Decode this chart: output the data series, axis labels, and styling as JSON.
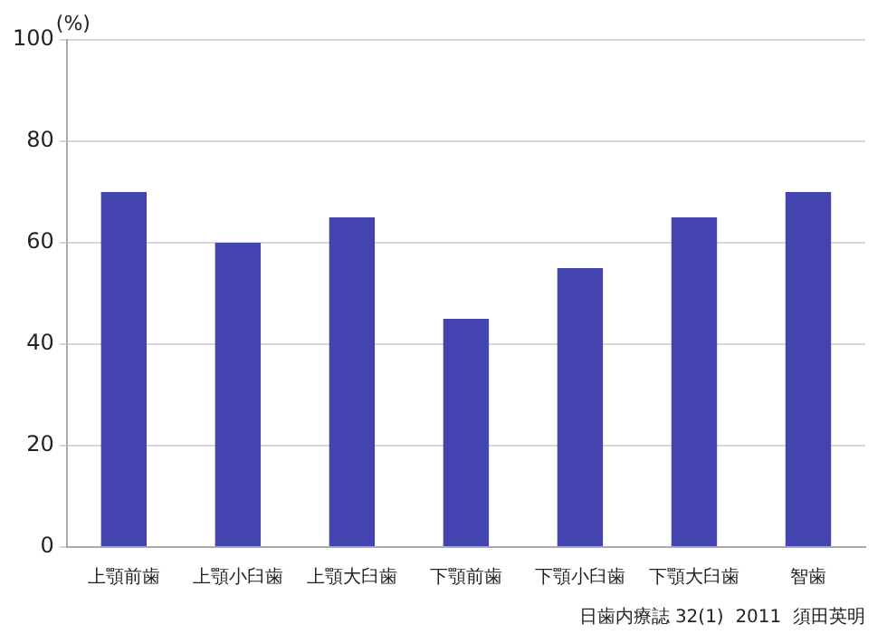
{
  "chart_data": {
    "type": "bar",
    "ylabel": "(%)",
    "categories": [
      "上顎前歯",
      "上顎小臼歯",
      "上顎大臼歯",
      "下顎前歯",
      "下顎小臼歯",
      "下顎大臼歯",
      "智歯"
    ],
    "values": [
      70,
      60,
      65,
      45,
      55,
      65,
      70
    ],
    "color": "#4444b0",
    "ylim": [
      0,
      100
    ],
    "yticks": [
      0,
      20,
      40,
      60,
      80,
      100
    ],
    "grid": "y",
    "legend": false,
    "annotations": [
      "日歯内療誌 32(1)  2011  須田英明"
    ]
  }
}
